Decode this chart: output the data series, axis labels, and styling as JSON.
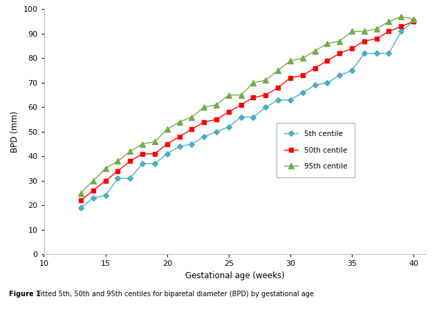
{
  "gestational_age": [
    13,
    14,
    15,
    16,
    17,
    18,
    19,
    20,
    21,
    22,
    23,
    24,
    25,
    26,
    27,
    28,
    29,
    30,
    31,
    32,
    33,
    34,
    35,
    36,
    37,
    38,
    39,
    40
  ],
  "p5": [
    19,
    23,
    24,
    31,
    31,
    37,
    37,
    41,
    44,
    45,
    48,
    50,
    52,
    56,
    56,
    60,
    63,
    63,
    66,
    69,
    70,
    73,
    75,
    82,
    82,
    82,
    91,
    95
  ],
  "p50": [
    22,
    26,
    30,
    34,
    38,
    41,
    41,
    45,
    48,
    51,
    54,
    55,
    58,
    61,
    64,
    65,
    68,
    72,
    73,
    76,
    79,
    82,
    84,
    87,
    88,
    91,
    93,
    95
  ],
  "p95": [
    25,
    30,
    35,
    38,
    42,
    45,
    46,
    51,
    54,
    56,
    60,
    61,
    65,
    65,
    70,
    71,
    75,
    79,
    80,
    83,
    86,
    87,
    91,
    91,
    92,
    95,
    97,
    96
  ],
  "xlabel": "Gestational age (weeks)",
  "ylabel": "BPD (mm)",
  "xlim": [
    10,
    41
  ],
  "ylim": [
    0,
    100
  ],
  "xticks": [
    10,
    15,
    20,
    25,
    30,
    35,
    40
  ],
  "yticks": [
    0,
    10,
    20,
    30,
    40,
    50,
    60,
    70,
    80,
    90,
    100
  ],
  "legend_labels": [
    "5th centile",
    "50th centile",
    "95th centile"
  ],
  "line_colors": [
    "#4BACC6",
    "#FF0000",
    "#70AD47"
  ],
  "markers": [
    "D",
    "s",
    "^"
  ],
  "marker_sizes": [
    4,
    5,
    6
  ],
  "line_width": 1.0,
  "caption_bold": "Figure 1 ",
  "caption_normal": "Fitted 5th, 50th and 95th centiles for biparetal diameter (BPD) by gestational age",
  "background_color": "#FFFFFF"
}
